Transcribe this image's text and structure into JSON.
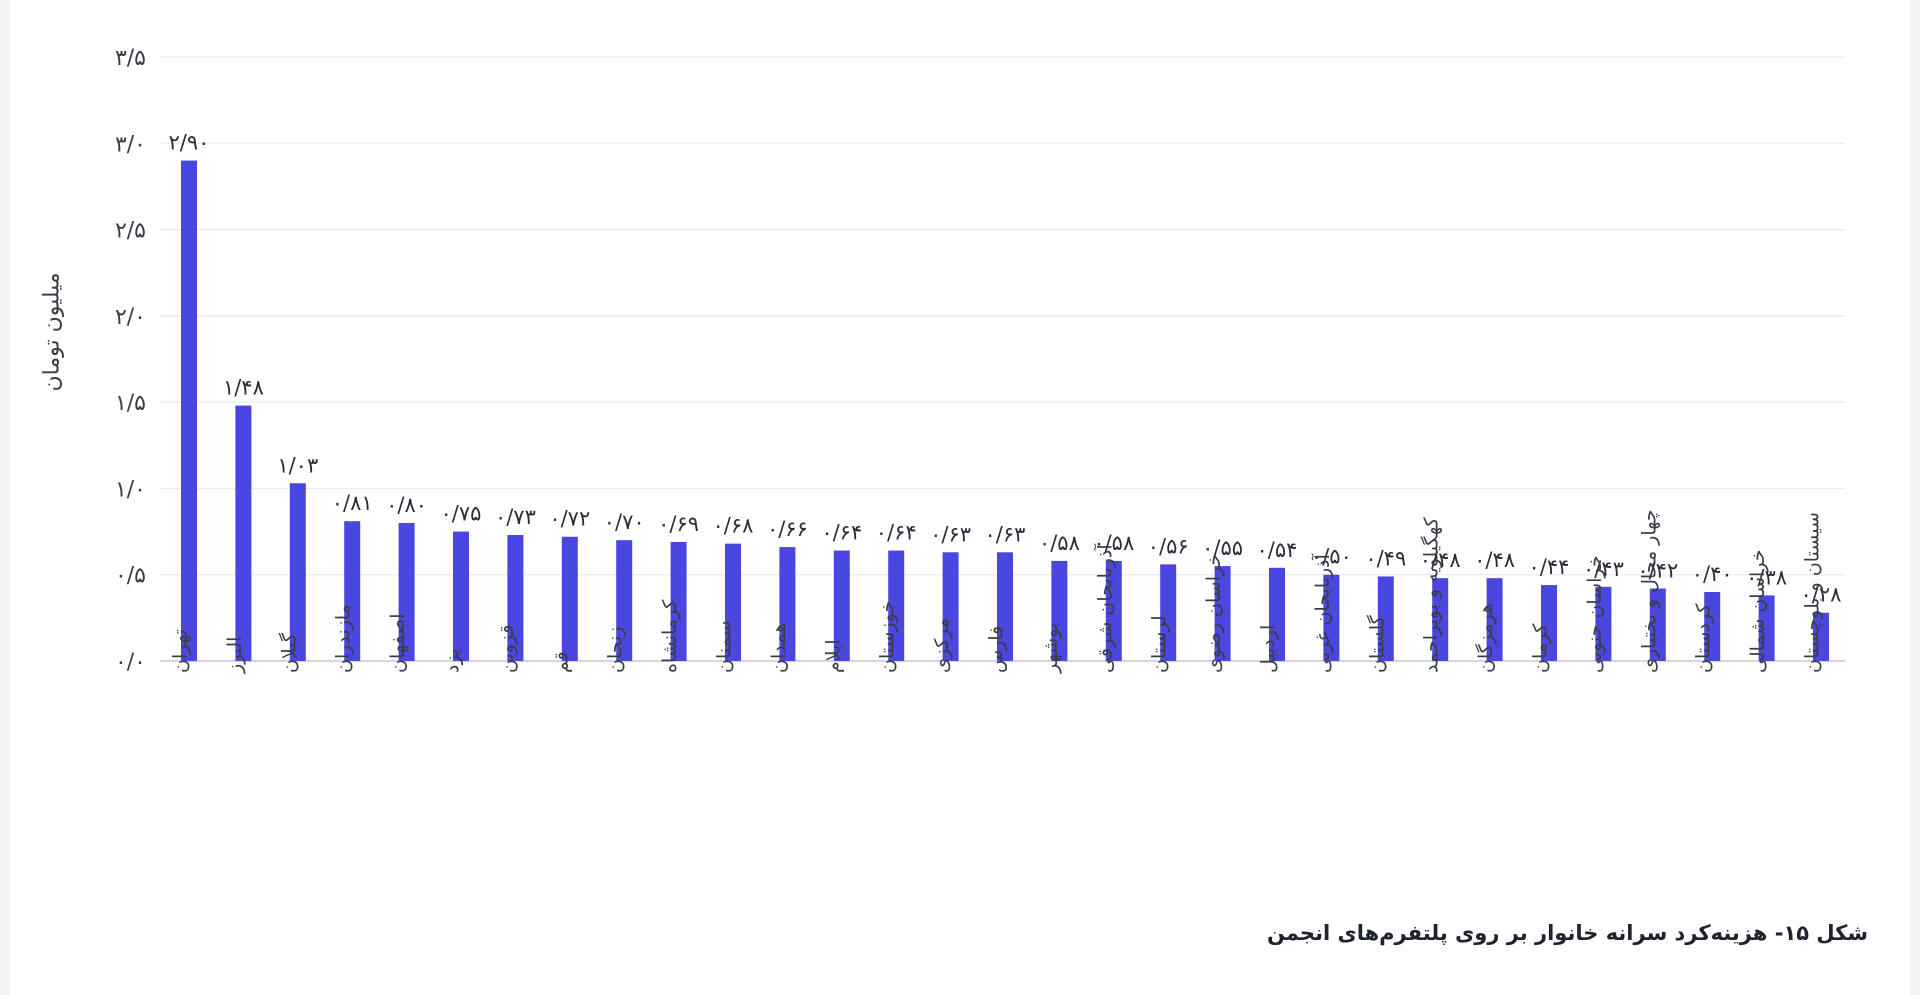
{
  "caption": "شکل ۱۵- هزینه‌کرد سرانه خانوار بر روی پلتفرم‌های انجمن",
  "chart_data": {
    "type": "bar",
    "ylabel": "میلیون تومان",
    "ylim": [
      0,
      3.5
    ],
    "yticks": [
      {
        "value": 0.0,
        "label": "۰/۰"
      },
      {
        "value": 0.5,
        "label": "۰/۵"
      },
      {
        "value": 1.0,
        "label": "۱/۰"
      },
      {
        "value": 1.5,
        "label": "۱/۵"
      },
      {
        "value": 2.0,
        "label": "۲/۰"
      },
      {
        "value": 2.5,
        "label": "۲/۵"
      },
      {
        "value": 3.0,
        "label": "۳/۰"
      },
      {
        "value": 3.5,
        "label": "۳/۵"
      }
    ],
    "grid": true,
    "bar_color": "#4a47e0",
    "categories": [
      "تهران",
      "البرز",
      "گیلان",
      "مازندران",
      "اصفهان",
      "یزد",
      "قزوین",
      "قم",
      "زنجان",
      "کرمانشاه",
      "سمنان",
      "همدان",
      "ایلام",
      "خوزستان",
      "مرکزی",
      "فارس",
      "بوشهر",
      "آذربایجان شرقی",
      "لرستان",
      "خراسان رضوی",
      "اردبیل",
      "آذربایجان غربی",
      "گلستان",
      "کهگیلویه و بویراحمد",
      "هرمزگان",
      "کرمان",
      "خراسان جنوبی",
      "چهار محال و بختیاری",
      "کردستان",
      "خراسان شمالی",
      "سیستان و بلوچستان"
    ],
    "values": [
      2.9,
      1.48,
      1.03,
      0.81,
      0.8,
      0.75,
      0.73,
      0.72,
      0.7,
      0.69,
      0.68,
      0.66,
      0.64,
      0.64,
      0.63,
      0.63,
      0.58,
      0.58,
      0.56,
      0.55,
      0.54,
      0.5,
      0.49,
      0.48,
      0.48,
      0.44,
      0.43,
      0.42,
      0.4,
      0.38,
      0.28
    ],
    "value_labels": [
      "۲/۹۰",
      "۱/۴۸",
      "۱/۰۳",
      "۰/۸۱",
      "۰/۸۰",
      "۰/۷۵",
      "۰/۷۳",
      "۰/۷۲",
      "۰/۷۰",
      "۰/۶۹",
      "۰/۶۸",
      "۰/۶۶",
      "۰/۶۴",
      "۰/۶۴",
      "۰/۶۳",
      "۰/۶۳",
      "۰/۵۸",
      "۰/۵۸",
      "۰/۵۶",
      "۰/۵۵",
      "۰/۵۴",
      "۰/۵۰",
      "۰/۴۹",
      "۰/۴۸",
      "۰/۴۸",
      "۰/۴۴",
      "۰/۴۳",
      "۰/۴۲",
      "۰/۴۰",
      "۰/۳۸",
      "۰/۲۸"
    ]
  }
}
